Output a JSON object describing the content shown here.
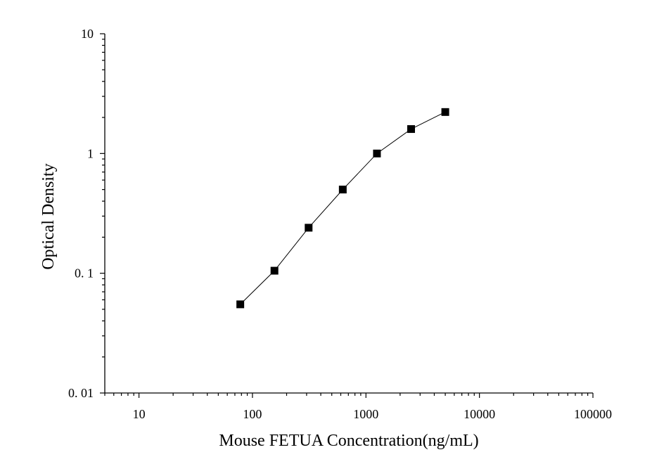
{
  "chart_data": {
    "type": "line",
    "title": "",
    "xlabel": "Mouse FETUA Concentration(ng/mL)",
    "ylabel": "Optical Density",
    "x_scale": "log",
    "y_scale": "log",
    "xlim": [
      5,
      100000
    ],
    "ylim": [
      0.01,
      10
    ],
    "x_ticks": [
      10,
      100,
      1000,
      10000,
      100000
    ],
    "x_tick_labels": [
      "10",
      "100",
      "1000",
      "10000",
      "100000"
    ],
    "y_ticks": [
      0.01,
      0.1,
      1,
      10
    ],
    "y_tick_labels": [
      "0. 01",
      "0. 1",
      "1",
      "10"
    ],
    "grid": false,
    "legend": "none",
    "marker": "square",
    "line_color": "#000000",
    "marker_color": "#000000",
    "series": [
      {
        "x": [
          78.125,
          156.25,
          312.5,
          625,
          1250,
          2500,
          5000
        ],
        "y": [
          0.055,
          0.105,
          0.24,
          0.5,
          1.0,
          1.6,
          2.22
        ]
      }
    ]
  }
}
